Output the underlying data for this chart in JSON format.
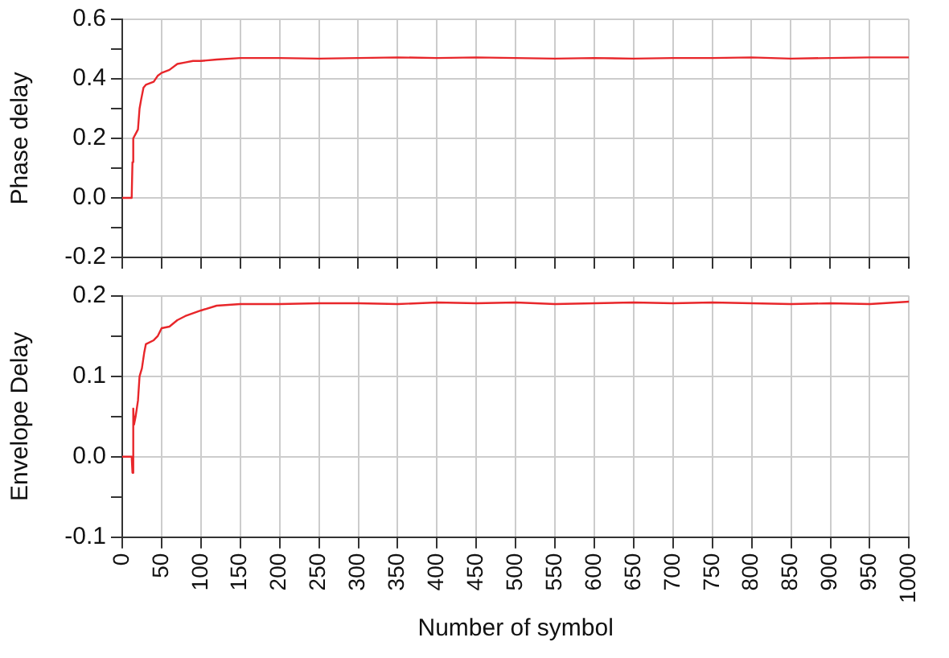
{
  "chart_data": [
    {
      "type": "line",
      "ylabel": "Phase delay",
      "xlim": [
        0,
        1000
      ],
      "xticks": [
        0,
        50,
        100,
        150,
        200,
        250,
        300,
        350,
        400,
        450,
        500,
        550,
        600,
        650,
        700,
        750,
        800,
        850,
        900,
        950,
        1000
      ],
      "ylim": [
        -0.2,
        0.6
      ],
      "yticks": [
        -0.2,
        {
          "value": -0.1,
          "label": null
        },
        {
          "value": 0,
          "label": "0.0"
        },
        {
          "value": 0.1,
          "label": null
        },
        0.2,
        {
          "value": 0.3,
          "label": null
        },
        0.4,
        {
          "value": 0.5,
          "label": null
        },
        0.6
      ],
      "grid": true,
      "tick_labels": "y",
      "line_style": "solid",
      "marker": "none",
      "series": [
        {
          "color": "#e8262a",
          "x": [
            0,
            12,
            13,
            14,
            18,
            20,
            22,
            24,
            27,
            30,
            40,
            45,
            50,
            60,
            70,
            80,
            90,
            100,
            120,
            150,
            200,
            250,
            300,
            350,
            400,
            450,
            500,
            550,
            600,
            650,
            700,
            750,
            800,
            850,
            900,
            950,
            1000
          ],
          "values": [
            0,
            0,
            0.12,
            0.2,
            0.22,
            0.23,
            0.3,
            0.33,
            0.37,
            0.38,
            0.39,
            0.41,
            0.42,
            0.43,
            0.45,
            0.455,
            0.46,
            0.46,
            0.465,
            0.47,
            0.47,
            0.468,
            0.47,
            0.472,
            0.47,
            0.472,
            0.47,
            0.468,
            0.47,
            0.468,
            0.47,
            0.47,
            0.472,
            0.468,
            0.47,
            0.472,
            0.472
          ]
        }
      ]
    },
    {
      "type": "line",
      "xlabel": "Number of symbol",
      "ylabel": "Envelope Delay",
      "xlim": [
        0,
        1000
      ],
      "xticks": [
        0,
        50,
        100,
        150,
        200,
        250,
        300,
        350,
        400,
        450,
        500,
        550,
        600,
        650,
        700,
        750,
        800,
        850,
        900,
        950,
        1000
      ],
      "ylim": [
        -0.1,
        0.2
      ],
      "yticks": [
        -0.1,
        {
          "value": -0.05,
          "label": null
        },
        {
          "value": 0,
          "label": "0.0"
        },
        {
          "value": 0.05,
          "label": null
        },
        0.1,
        {
          "value": 0.15,
          "label": null
        },
        0.2
      ],
      "grid": true,
      "line_style": "solid",
      "marker": "none",
      "series": [
        {
          "color": "#e8262a",
          "x": [
            0,
            12,
            13,
            14,
            15,
            17,
            20,
            22,
            25,
            28,
            30,
            40,
            45,
            50,
            60,
            70,
            80,
            100,
            120,
            150,
            200,
            250,
            300,
            350,
            400,
            450,
            500,
            550,
            600,
            650,
            700,
            750,
            800,
            850,
            900,
            950,
            1000
          ],
          "values": [
            0,
            0,
            -0.02,
            0.06,
            0.04,
            0.05,
            0.07,
            0.1,
            0.11,
            0.13,
            0.14,
            0.145,
            0.15,
            0.16,
            0.162,
            0.17,
            0.175,
            0.182,
            0.188,
            0.19,
            0.19,
            0.191,
            0.191,
            0.19,
            0.192,
            0.191,
            0.192,
            0.19,
            0.191,
            0.192,
            0.191,
            0.192,
            0.191,
            0.19,
            0.191,
            0.19,
            0.193
          ]
        }
      ]
    }
  ]
}
